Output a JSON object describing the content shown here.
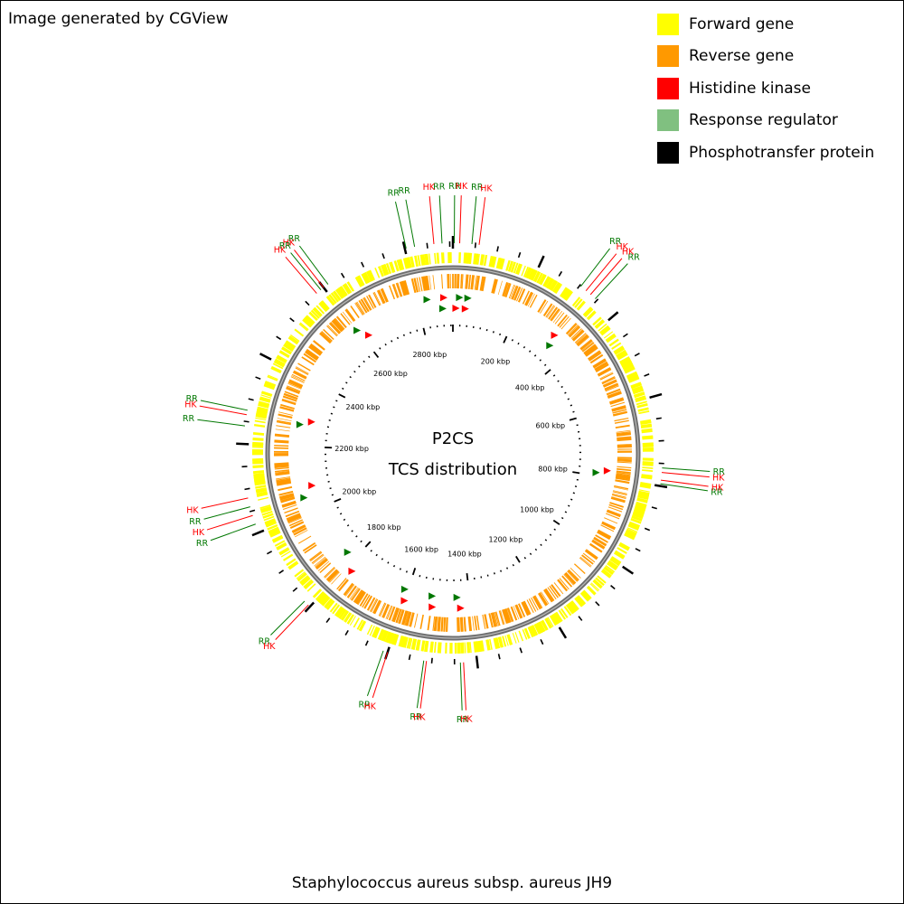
{
  "credit": "Image generated by CGView",
  "legend": [
    {
      "label": "Forward gene",
      "color": "#ffff00"
    },
    {
      "label": "Reverse gene",
      "color": "#ff9900"
    },
    {
      "label": "Histidine kinase",
      "color": "#ff0000"
    },
    {
      "label": "Response regulator",
      "color": "#80c080"
    },
    {
      "label": "Phosphotransfer protein",
      "color": "#000000"
    }
  ],
  "center": {
    "line1": "P2CS",
    "line2": "TCS distribution"
  },
  "genome_name": "Staphylococcus aureus subsp. aureus JH9",
  "chart_data": {
    "type": "circular-genome-map",
    "genome_length_kbp": 2907,
    "tick_labels": [
      {
        "kbp": 200,
        "label": "200 kbp"
      },
      {
        "kbp": 400,
        "label": "400 kbp"
      },
      {
        "kbp": 600,
        "label": "600 kbp"
      },
      {
        "kbp": 800,
        "label": "800 kbp"
      },
      {
        "kbp": 1000,
        "label": "1000 kbp"
      },
      {
        "kbp": 1200,
        "label": "1200 kbp"
      },
      {
        "kbp": 1400,
        "label": "1400 kbp"
      },
      {
        "kbp": 1600,
        "label": "1600 kbp"
      },
      {
        "kbp": 1800,
        "label": "1800 kbp"
      },
      {
        "kbp": 2000,
        "label": "2000 kbp"
      },
      {
        "kbp": 2200,
        "label": "2200 kbp"
      },
      {
        "kbp": 2400,
        "label": "2400 kbp"
      },
      {
        "kbp": 2600,
        "label": "2600 kbp"
      },
      {
        "kbp": 2800,
        "label": "2800 kbp"
      }
    ],
    "annotations": [
      {
        "kbp": 2883,
        "label": "RR",
        "type": "RR"
      },
      {
        "kbp": 2865,
        "label": "HK",
        "type": "HK"
      },
      {
        "kbp": 2822,
        "label": "RR",
        "type": "RR"
      },
      {
        "kbp": 2803,
        "label": "RR",
        "type": "RR"
      },
      {
        "kbp": 2612,
        "label": "RR",
        "type": "RR"
      },
      {
        "kbp": 2600,
        "label": "HK",
        "type": "HK"
      },
      {
        "kbp": 2592,
        "label": "RR",
        "type": "RR"
      },
      {
        "kbp": 2580,
        "label": "HK",
        "type": "HK"
      },
      {
        "kbp": 2275,
        "label": "RR",
        "type": "RR"
      },
      {
        "kbp": 2265,
        "label": "HK",
        "type": "HK"
      },
      {
        "kbp": 2240,
        "label": "RR",
        "type": "RR"
      },
      {
        "kbp": 2080,
        "label": "HK",
        "type": "HK"
      },
      {
        "kbp": 2060,
        "label": "RR",
        "type": "RR"
      },
      {
        "kbp": 2040,
        "label": "HK",
        "type": "HK"
      },
      {
        "kbp": 2020,
        "label": "RR",
        "type": "RR"
      },
      {
        "kbp": 1817,
        "label": "RR",
        "type": "RR"
      },
      {
        "kbp": 1805,
        "label": "HK",
        "type": "HK"
      },
      {
        "kbp": 1610,
        "label": "RR",
        "type": "RR"
      },
      {
        "kbp": 1600,
        "label": "HK",
        "type": "HK"
      },
      {
        "kbp": 1518,
        "label": "RR",
        "type": "RR"
      },
      {
        "kbp": 1512,
        "label": "HK",
        "type": "HK"
      },
      {
        "kbp": 1437,
        "label": "RR",
        "type": "RR"
      },
      {
        "kbp": 1430,
        "label": "HK",
        "type": "HK"
      },
      {
        "kbp": 795,
        "label": "RR",
        "type": "RR"
      },
      {
        "kbp": 787,
        "label": "HK",
        "type": "HK"
      },
      {
        "kbp": 770,
        "label": "HK",
        "type": "HK"
      },
      {
        "kbp": 760,
        "label": "RR",
        "type": "RR"
      },
      {
        "kbp": 345,
        "label": "RR",
        "type": "RR"
      },
      {
        "kbp": 331,
        "label": "HK",
        "type": "HK"
      },
      {
        "kbp": 318,
        "label": "HK",
        "type": "HK"
      },
      {
        "kbp": 303,
        "label": "RR",
        "type": "RR"
      },
      {
        "kbp": 3,
        "label": "RR",
        "type": "RR"
      },
      {
        "kbp": 15,
        "label": "HK",
        "type": "HK"
      },
      {
        "kbp": 42,
        "label": "RR",
        "type": "RR"
      },
      {
        "kbp": 58,
        "label": "HK",
        "type": "HK"
      }
    ],
    "markers": [
      {
        "kbp": 2880,
        "type": "HK"
      },
      {
        "kbp": 2875,
        "type": "RR"
      },
      {
        "kbp": 2830,
        "type": "RR"
      },
      {
        "kbp": 2620,
        "type": "HK"
      },
      {
        "kbp": 2600,
        "type": "RR"
      },
      {
        "kbp": 2280,
        "type": "HK"
      },
      {
        "kbp": 2265,
        "type": "RR"
      },
      {
        "kbp": 2075,
        "type": "HK"
      },
      {
        "kbp": 2045,
        "type": "RR"
      },
      {
        "kbp": 1830,
        "type": "RR"
      },
      {
        "kbp": 1780,
        "type": "HK"
      },
      {
        "kbp": 1610,
        "type": "RR"
      },
      {
        "kbp": 1600,
        "type": "HK"
      },
      {
        "kbp": 1520,
        "type": "RR"
      },
      {
        "kbp": 1515,
        "type": "HK"
      },
      {
        "kbp": 1440,
        "type": "RR"
      },
      {
        "kbp": 1430,
        "type": "HK"
      },
      {
        "kbp": 790,
        "type": "RR"
      },
      {
        "kbp": 780,
        "type": "HK"
      },
      {
        "kbp": 340,
        "type": "RR"
      },
      {
        "kbp": 330,
        "type": "HK"
      },
      {
        "kbp": 10,
        "type": "HK"
      },
      {
        "kbp": 20,
        "type": "RR"
      },
      {
        "kbp": 40,
        "type": "HK"
      },
      {
        "kbp": 45,
        "type": "RR"
      }
    ]
  }
}
